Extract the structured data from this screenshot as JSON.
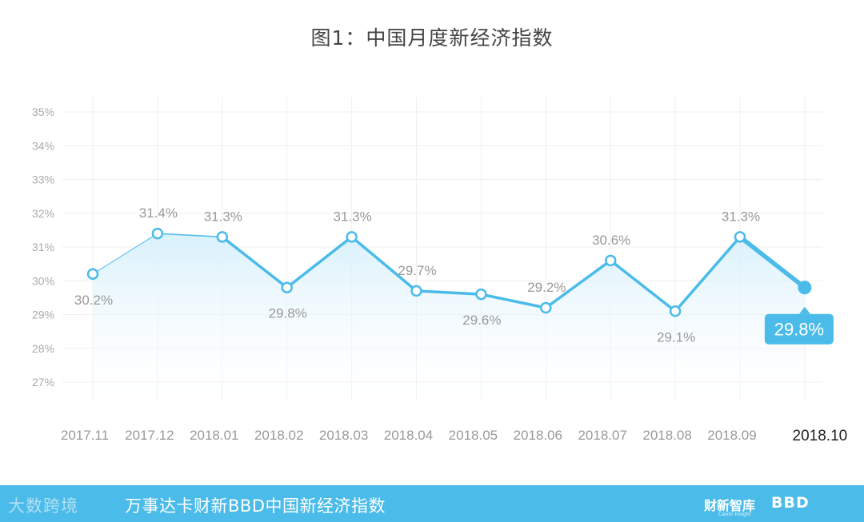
{
  "chart_data": {
    "type": "area",
    "title": "图1：中国月度新经济指数",
    "categories": [
      "2017.11",
      "2017.12",
      "2018.01",
      "2018.02",
      "2018.03",
      "2018.04",
      "2018.05",
      "2018.06",
      "2018.07",
      "2018.08",
      "2018.09",
      "2018.10"
    ],
    "values": [
      30.2,
      31.4,
      31.3,
      29.8,
      31.3,
      29.7,
      29.6,
      29.2,
      30.6,
      29.1,
      31.3,
      29.8
    ],
    "data_labels": [
      "30.2%",
      "31.4%",
      "31.3%",
      "29.8%",
      "31.3%",
      "29.7%",
      "29.6%",
      "29.2%",
      "30.6%",
      "29.1%",
      "31.3%",
      "29.8%"
    ],
    "y_ticks": [
      "27%",
      "28%",
      "29%",
      "30%",
      "31%",
      "32%",
      "33%",
      "34%",
      "35%"
    ],
    "ylim": [
      27,
      35
    ],
    "grid": true,
    "highlight_last": true,
    "colors": {
      "line": "#4bbbe9",
      "highlight_bg": "#4bbbe9",
      "label": "#999999",
      "tick": "#aaaaaa",
      "grid": "#efefef"
    }
  },
  "footer": {
    "logo_text": "大数跨境",
    "title": "万事达卡财新BBD中国新经济指数",
    "brand1": "财新智库",
    "brand1_sub": "Caixin Insight",
    "brand2": "BBD"
  }
}
